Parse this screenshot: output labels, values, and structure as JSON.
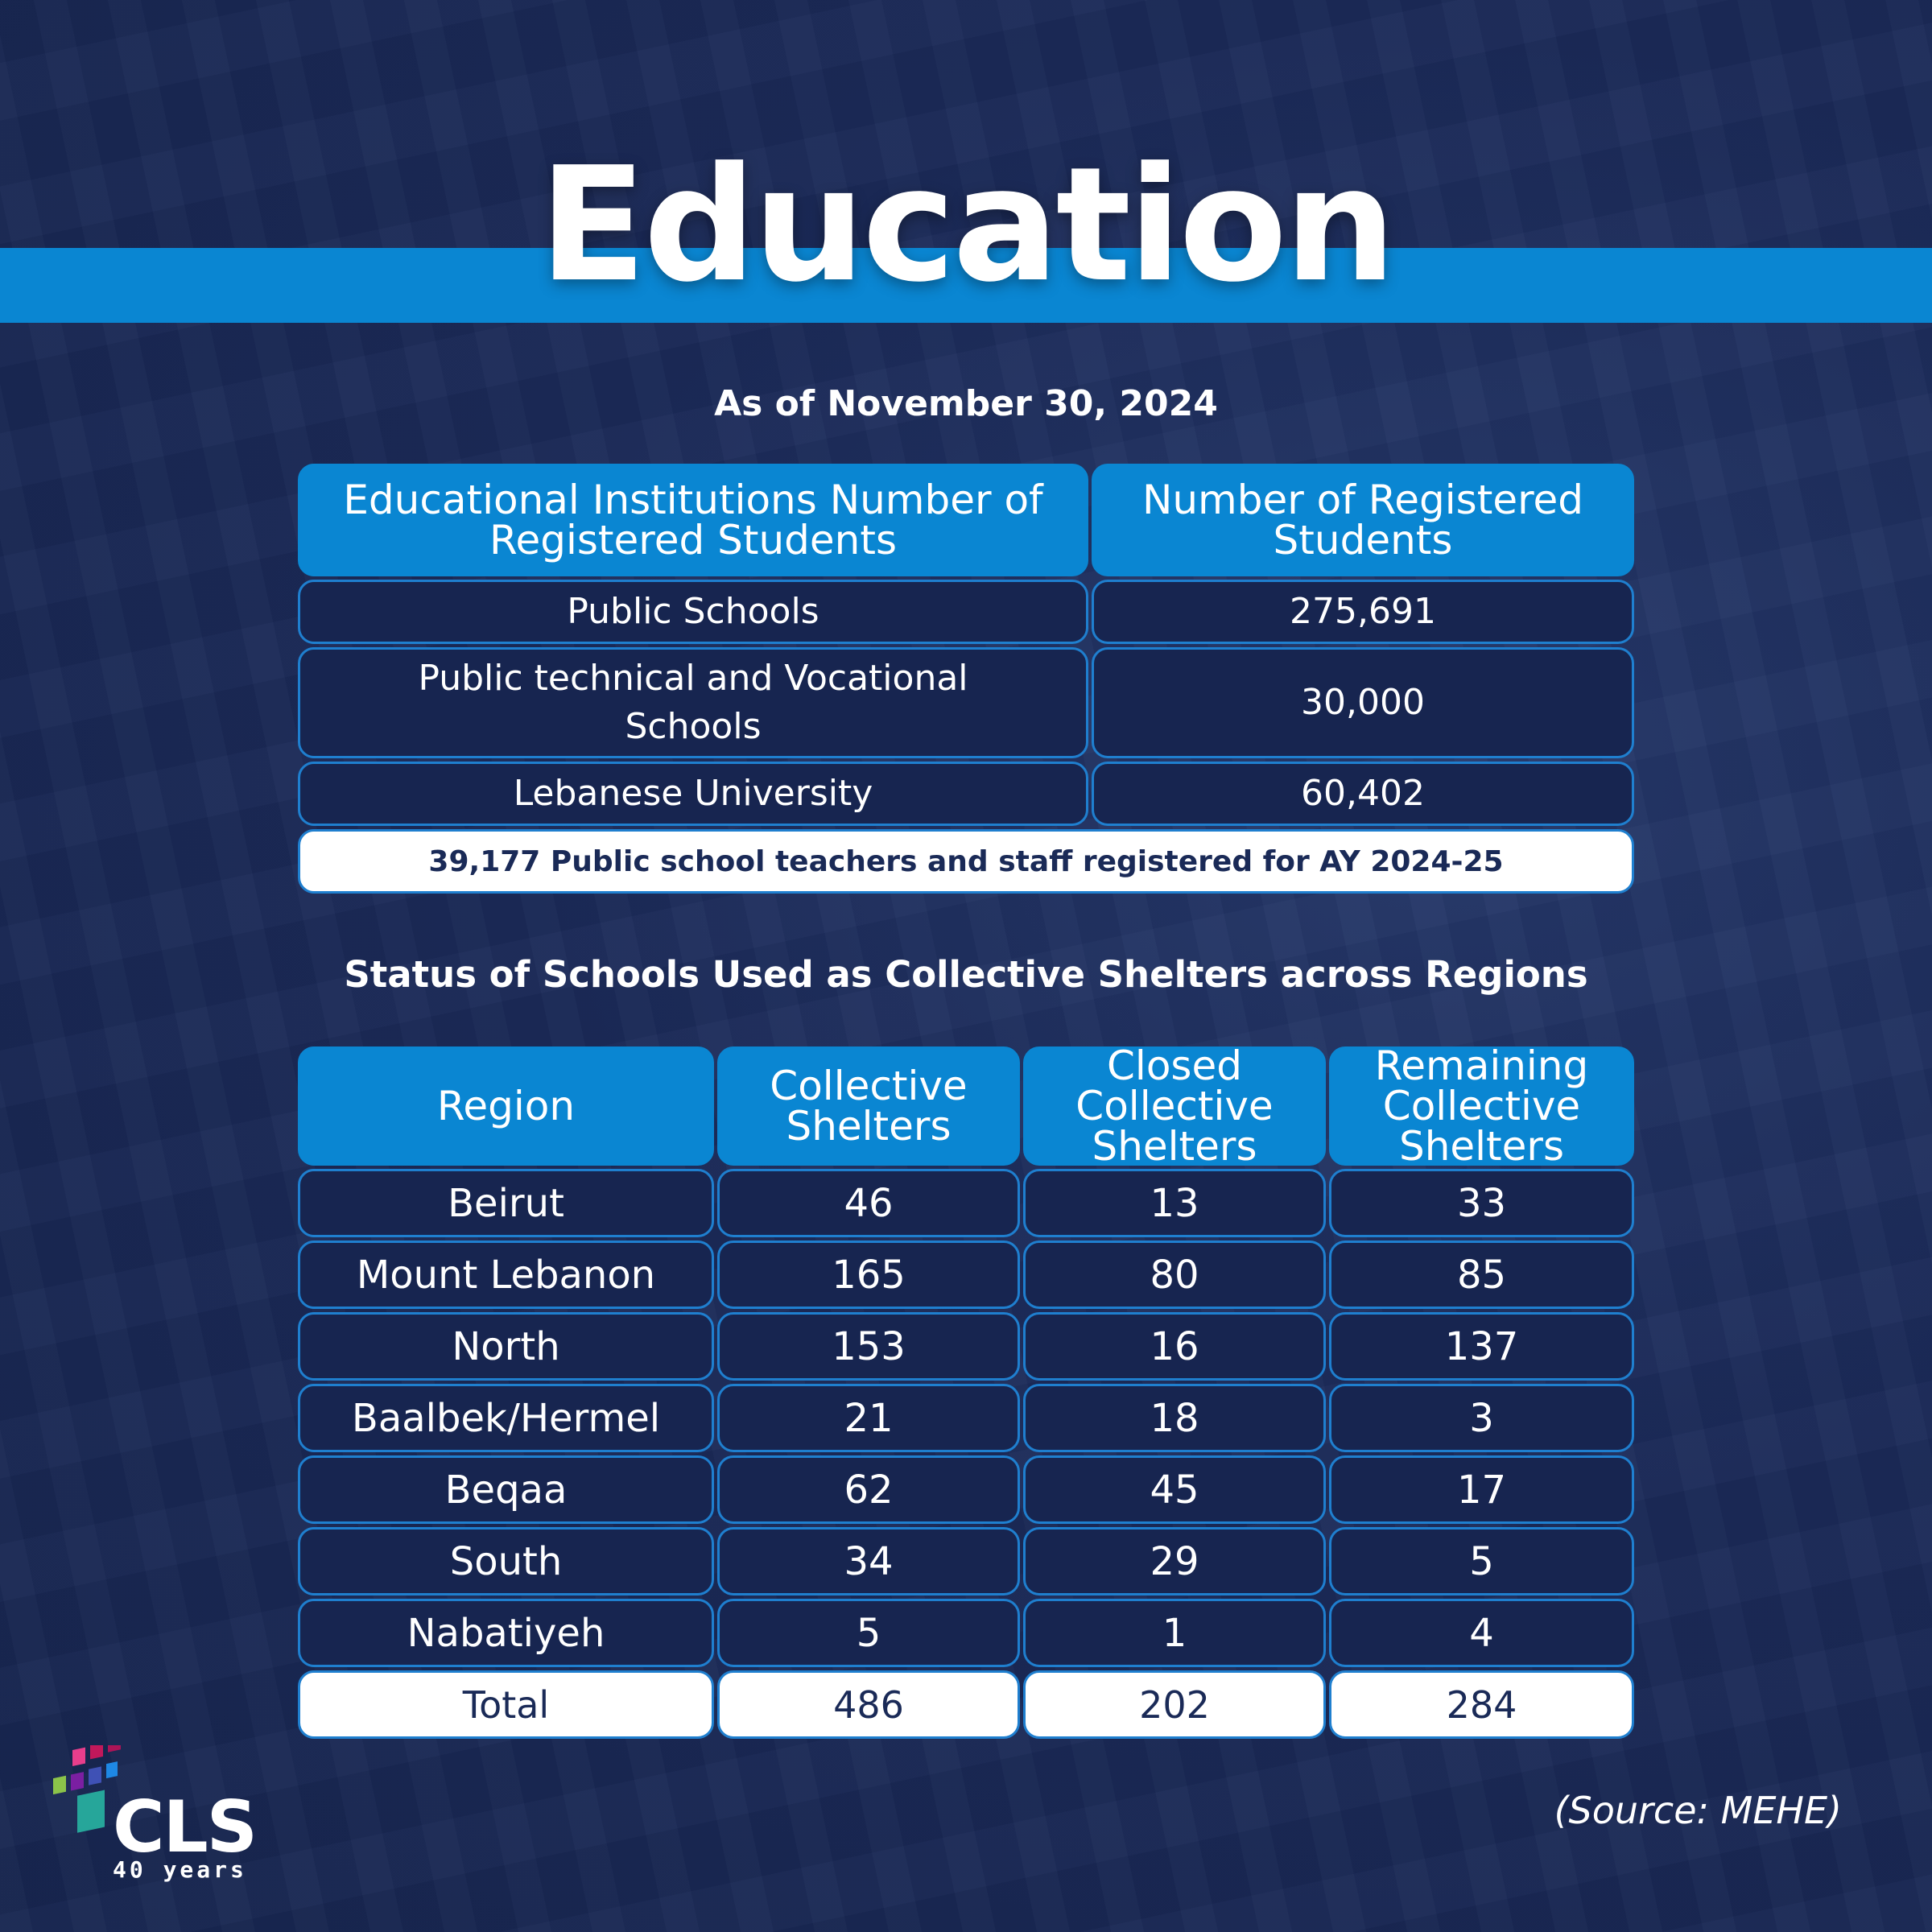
{
  "title": "Education",
  "as_of": "As of November 30, 2024",
  "registration": {
    "headers": [
      "Educational Institutions Number of Registered Students",
      "Number of Registered Students"
    ],
    "rows": [
      {
        "institution": "Public Schools",
        "students": "275,691"
      },
      {
        "institution": "Public technical and Vocational Schools",
        "students": "30,000"
      },
      {
        "institution": "Lebanese University",
        "students": "60,402"
      }
    ],
    "note": "39,177 Public school teachers and staff registered for AY 2024-25"
  },
  "shelters": {
    "title": "Status of Schools Used as Collective Shelters across Regions",
    "headers": [
      "Region",
      "Collective Shelters",
      "Closed Collective Shelters",
      "Remaining Collective Shelters"
    ],
    "rows": [
      {
        "region": "Beirut",
        "collective": "46",
        "closed": "13",
        "remaining": "33"
      },
      {
        "region": "Mount Lebanon",
        "collective": "165",
        "closed": "80",
        "remaining": "85"
      },
      {
        "region": "North",
        "collective": "153",
        "closed": "16",
        "remaining": "137"
      },
      {
        "region": "Baalbek/Hermel",
        "collective": "21",
        "closed": "18",
        "remaining": "3"
      },
      {
        "region": "Beqaa",
        "collective": "62",
        "closed": "45",
        "remaining": "17"
      },
      {
        "region": "South",
        "collective": "34",
        "closed": "29",
        "remaining": "5"
      },
      {
        "region": "Nabatiyeh",
        "collective": "5",
        "closed": "1",
        "remaining": "4"
      }
    ],
    "total": {
      "region": "Total",
      "collective": "486",
      "closed": "202",
      "remaining": "284"
    }
  },
  "logo": {
    "name": "CLS",
    "tagline": "40 years"
  },
  "source": "(Source: MEHE)",
  "colors": {
    "background": "#1b2a58",
    "accent": "#0a86d2",
    "border": "#1f7fcf",
    "dark_text": "#1a2a57"
  }
}
